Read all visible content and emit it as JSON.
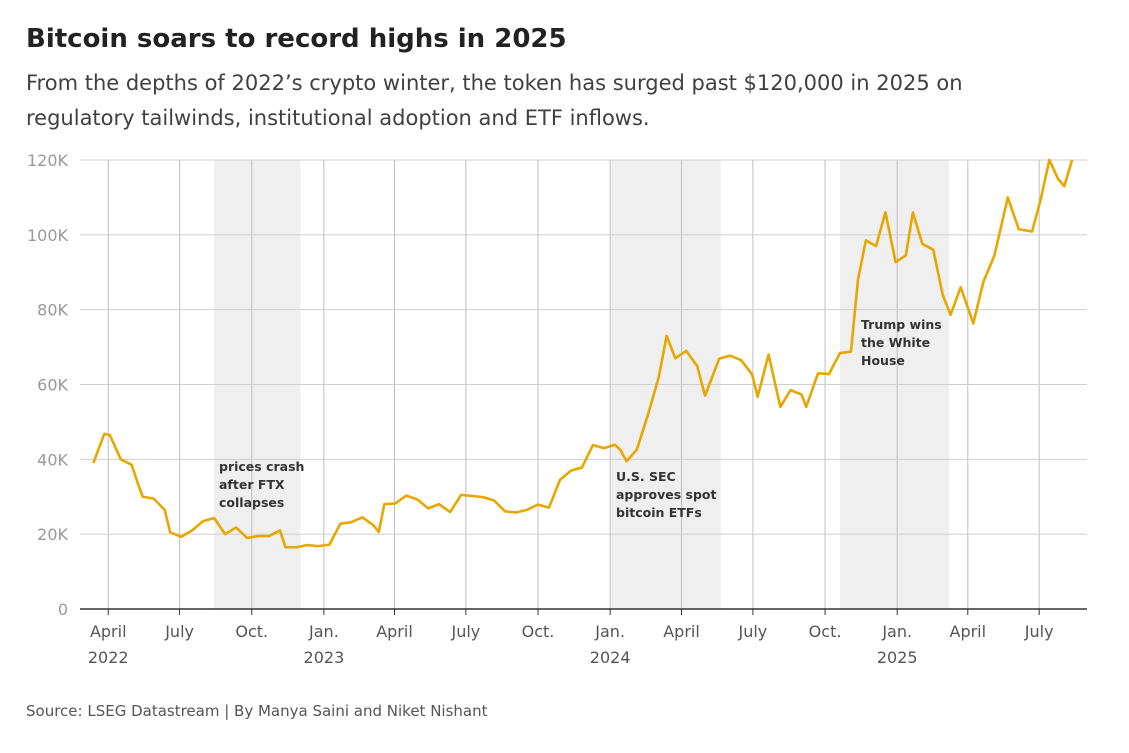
{
  "chart_data": {
    "type": "line",
    "title": "Bitcoin soars to record highs in 2025",
    "subtitle": "From the depths of 2022’s crypto winter, the token has surged past $120,000 in 2025 on regulatory tailwinds, institutional adoption and ETF inflows.",
    "source": "Source: LSEG Datastream | By Manya Saini and Niket Nishant",
    "color": "#e8a600",
    "grid": true,
    "xlim": [
      "2022-02-24",
      "2025-08-31"
    ],
    "ylim": [
      0,
      120000
    ],
    "yticks": [
      {
        "value": 0,
        "label": "0"
      },
      {
        "value": 20000,
        "label": "20K"
      },
      {
        "value": 40000,
        "label": "40K"
      },
      {
        "value": 60000,
        "label": "60K"
      },
      {
        "value": 80000,
        "label": "80K"
      },
      {
        "value": 100000,
        "label": "100K"
      },
      {
        "value": 120000,
        "label": "120K"
      }
    ],
    "xticks": [
      {
        "value": "2022-04-01",
        "label": "April",
        "year": "2022"
      },
      {
        "value": "2022-07-01",
        "label": "July"
      },
      {
        "value": "2022-10-01",
        "label": "Oct."
      },
      {
        "value": "2023-01-01",
        "label": "Jan.",
        "year": "2023"
      },
      {
        "value": "2023-04-01",
        "label": "April"
      },
      {
        "value": "2023-07-01",
        "label": "July"
      },
      {
        "value": "2023-10-01",
        "label": "Oct."
      },
      {
        "value": "2024-01-01",
        "label": "Jan.",
        "year": "2024"
      },
      {
        "value": "2024-04-01",
        "label": "April"
      },
      {
        "value": "2024-07-01",
        "label": "July"
      },
      {
        "value": "2024-10-01",
        "label": "Oct."
      },
      {
        "value": "2025-01-01",
        "label": "Jan.",
        "year": "2025"
      },
      {
        "value": "2025-04-01",
        "label": "April"
      },
      {
        "value": "2025-07-01",
        "label": "July"
      }
    ],
    "annotations": [
      {
        "start": "2022-08-14",
        "end": "2022-12-02",
        "lines": [
          "prices crash",
          "after FTX",
          "collapses"
        ]
      },
      {
        "start": "2024-01-02",
        "end": "2024-05-21",
        "lines": [
          "U.S. SEC",
          "approves spot",
          "bitcoin ETFs"
        ]
      },
      {
        "start": "2024-10-20",
        "end": "2025-03-08",
        "lines": [
          "Trump wins",
          "the White",
          "House"
        ]
      }
    ],
    "x": [
      "2022-03-13",
      "2022-03-27",
      "2022-04-03",
      "2022-04-17",
      "2022-05-01",
      "2022-05-08",
      "2022-05-15",
      "2022-05-29",
      "2022-06-12",
      "2022-06-19",
      "2022-07-03",
      "2022-07-17",
      "2022-07-31",
      "2022-08-14",
      "2022-08-28",
      "2022-09-11",
      "2022-09-25",
      "2022-10-09",
      "2022-10-23",
      "2022-11-06",
      "2022-11-13",
      "2022-11-27",
      "2022-12-11",
      "2022-12-25",
      "2023-01-08",
      "2023-01-22",
      "2023-02-05",
      "2023-02-19",
      "2023-03-05",
      "2023-03-12",
      "2023-03-19",
      "2023-04-02",
      "2023-04-16",
      "2023-04-30",
      "2023-05-14",
      "2023-05-28",
      "2023-06-11",
      "2023-06-25",
      "2023-07-09",
      "2023-07-23",
      "2023-08-06",
      "2023-08-20",
      "2023-09-03",
      "2023-09-17",
      "2023-10-01",
      "2023-10-15",
      "2023-10-29",
      "2023-11-12",
      "2023-11-26",
      "2023-12-10",
      "2023-12-24",
      "2024-01-07",
      "2024-01-14",
      "2024-01-22",
      "2024-02-04",
      "2024-02-18",
      "2024-03-03",
      "2024-03-13",
      "2024-03-24",
      "2024-04-07",
      "2024-04-21",
      "2024-05-01",
      "2024-05-19",
      "2024-06-02",
      "2024-06-16",
      "2024-06-30",
      "2024-07-07",
      "2024-07-21",
      "2024-08-05",
      "2024-08-18",
      "2024-09-01",
      "2024-09-07",
      "2024-09-22",
      "2024-10-06",
      "2024-10-20",
      "2024-11-03",
      "2024-11-12",
      "2024-11-22",
      "2024-12-05",
      "2024-12-17",
      "2024-12-30",
      "2025-01-12",
      "2025-01-21",
      "2025-02-02",
      "2025-02-16",
      "2025-02-28",
      "2025-03-10",
      "2025-03-23",
      "2025-04-08",
      "2025-04-21",
      "2025-05-05",
      "2025-05-22",
      "2025-06-05",
      "2025-06-22",
      "2025-07-03",
      "2025-07-14",
      "2025-07-25",
      "2025-08-02",
      "2025-08-12"
    ],
    "values": [
      39000,
      46800,
      46500,
      40000,
      38500,
      34000,
      30000,
      29500,
      26500,
      20500,
      19300,
      21000,
      23500,
      24300,
      20000,
      21800,
      19000,
      19500,
      19500,
      21000,
      16500,
      16500,
      17100,
      16800,
      17200,
      22800,
      23200,
      24500,
      22400,
      20600,
      28000,
      28200,
      30300,
      29300,
      26900,
      28000,
      25900,
      30500,
      30200,
      29900,
      29000,
      26100,
      25800,
      26500,
      27900,
      27100,
      34500,
      37000,
      37800,
      43800,
      43000,
      43900,
      42500,
      39500,
      42600,
      51800,
      62000,
      73000,
      67000,
      69000,
      64900,
      57000,
      66900,
      67700,
      66500,
      62700,
      56700,
      68000,
      54000,
      58500,
      57300,
      54000,
      63000,
      62800,
      68400,
      68800,
      88000,
      98500,
      97000,
      106000,
      92700,
      94500,
      106000,
      97600,
      96000,
      84000,
      78600,
      86000,
      76300,
      87500,
      94500,
      110000,
      101500,
      100900,
      109500,
      120000,
      115000,
      113000,
      120000
    ]
  }
}
